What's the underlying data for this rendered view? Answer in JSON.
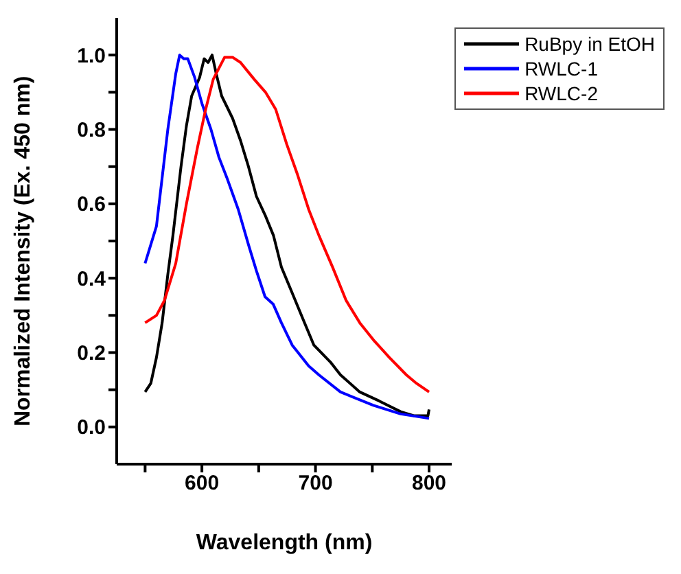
{
  "chart_data": {
    "type": "line",
    "xlabel": "Wavelength (nm)",
    "ylabel": "Normalized Intensity (Ex. 450 nm)",
    "xlim": [
      525,
      820
    ],
    "ylim": [
      -0.1,
      1.1
    ],
    "xticks": [
      {
        "value": 550,
        "label": null
      },
      600,
      {
        "value": 650,
        "label": null
      },
      700,
      {
        "value": 750,
        "label": null
      },
      800
    ],
    "yticks": [
      {
        "value": 0,
        "label": "0.0"
      },
      {
        "value": 0.1,
        "label": null
      },
      0.2,
      {
        "value": 0.3,
        "label": null
      },
      0.4,
      {
        "value": 0.5,
        "label": null
      },
      0.6,
      {
        "value": 0.7,
        "label": null
      },
      0.8,
      {
        "value": 0.9,
        "label": null
      },
      {
        "value": 1,
        "label": "1.0"
      }
    ],
    "grid": false,
    "legend": "top right",
    "marker": "none",
    "line_style": "solid",
    "series": [
      {
        "name": "RuBpy in EtOH",
        "color": "#000000",
        "x": [
          550,
          555,
          560,
          565,
          570,
          574.5,
          581.6,
          586.4,
          591,
          598,
          602,
          605.5,
          609,
          612.6,
          617.4,
          627,
          634,
          641,
          648,
          655.6,
          663,
          670,
          679.5,
          689,
          698.6,
          713,
          722,
          739,
          756,
          775,
          787,
          799,
          800
        ],
        "values": [
          0.094,
          0.117,
          0.187,
          0.28,
          0.41,
          0.515,
          0.7,
          0.81,
          0.89,
          0.94,
          0.99,
          0.98,
          1.0,
          0.95,
          0.89,
          0.83,
          0.77,
          0.7,
          0.62,
          0.57,
          0.515,
          0.43,
          0.36,
          0.29,
          0.22,
          0.175,
          0.14,
          0.094,
          0.07,
          0.041,
          0.03,
          0.03,
          0.047
        ]
      },
      {
        "name": "RWLC-1",
        "color": "#0000ff",
        "x": [
          550,
          560,
          570,
          577,
          580.4,
          584,
          587.6,
          593.6,
          600,
          608,
          615,
          622,
          632,
          641,
          648,
          655.6,
          662.8,
          670,
          679.5,
          694,
          703,
          722,
          751,
          775,
          800
        ],
        "values": [
          0.44,
          0.54,
          0.8,
          0.95,
          1.0,
          0.99,
          0.99,
          0.94,
          0.87,
          0.8,
          0.725,
          0.67,
          0.585,
          0.49,
          0.42,
          0.35,
          0.33,
          0.28,
          0.22,
          0.164,
          0.14,
          0.094,
          0.058,
          0.035,
          0.023
        ]
      },
      {
        "name": "RWLC-2",
        "color": "#ff0000",
        "x": [
          550,
          560,
          567,
          577,
          586.4,
          596,
          603,
          610,
          620,
          627,
          634,
          646,
          656,
          665,
          674.7,
          684,
          694,
          703,
          715,
          727,
          739,
          751,
          765,
          780,
          789,
          800
        ],
        "values": [
          0.28,
          0.3,
          0.34,
          0.44,
          0.6,
          0.75,
          0.85,
          0.935,
          0.994,
          0.994,
          0.98,
          0.935,
          0.9,
          0.854,
          0.76,
          0.68,
          0.585,
          0.515,
          0.43,
          0.34,
          0.28,
          0.234,
          0.187,
          0.14,
          0.117,
          0.094
        ]
      }
    ]
  }
}
